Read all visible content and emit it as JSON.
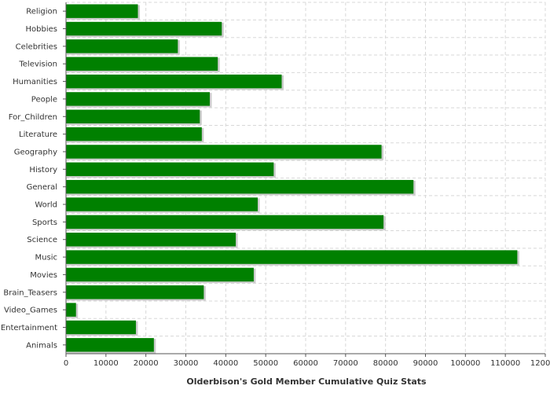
{
  "chart_data": {
    "type": "bar",
    "orientation": "horizontal",
    "categories": [
      "Religion",
      "Hobbies",
      "Celebrities",
      "Television",
      "Humanities",
      "People",
      "For_Children",
      "Literature",
      "Geography",
      "History",
      "General",
      "World",
      "Sports",
      "Science",
      "Music",
      "Movies",
      "Brain_Teasers",
      "Video_Games",
      "Entertainment",
      "Animals"
    ],
    "values": [
      18000,
      39000,
      28000,
      38000,
      54000,
      36000,
      33500,
      34000,
      79000,
      52000,
      87000,
      48000,
      79500,
      42500,
      113000,
      47000,
      34500,
      2500,
      17500,
      22000
    ],
    "xlabel": "Olderbison's Gold Member Cumulative Quiz Stats",
    "ylabel": "",
    "xlim": [
      0,
      120000
    ],
    "xticks": [
      "0",
      "10000",
      "20000",
      "30000",
      "40000",
      "50000",
      "60000",
      "70000",
      "80000",
      "90000",
      "100000",
      "110000",
      "120000"
    ],
    "grid": true,
    "legend": "none",
    "bar_color": "#008000",
    "bar_shadow_color": "#cccccc",
    "grid_color": "#d8d8d8"
  }
}
